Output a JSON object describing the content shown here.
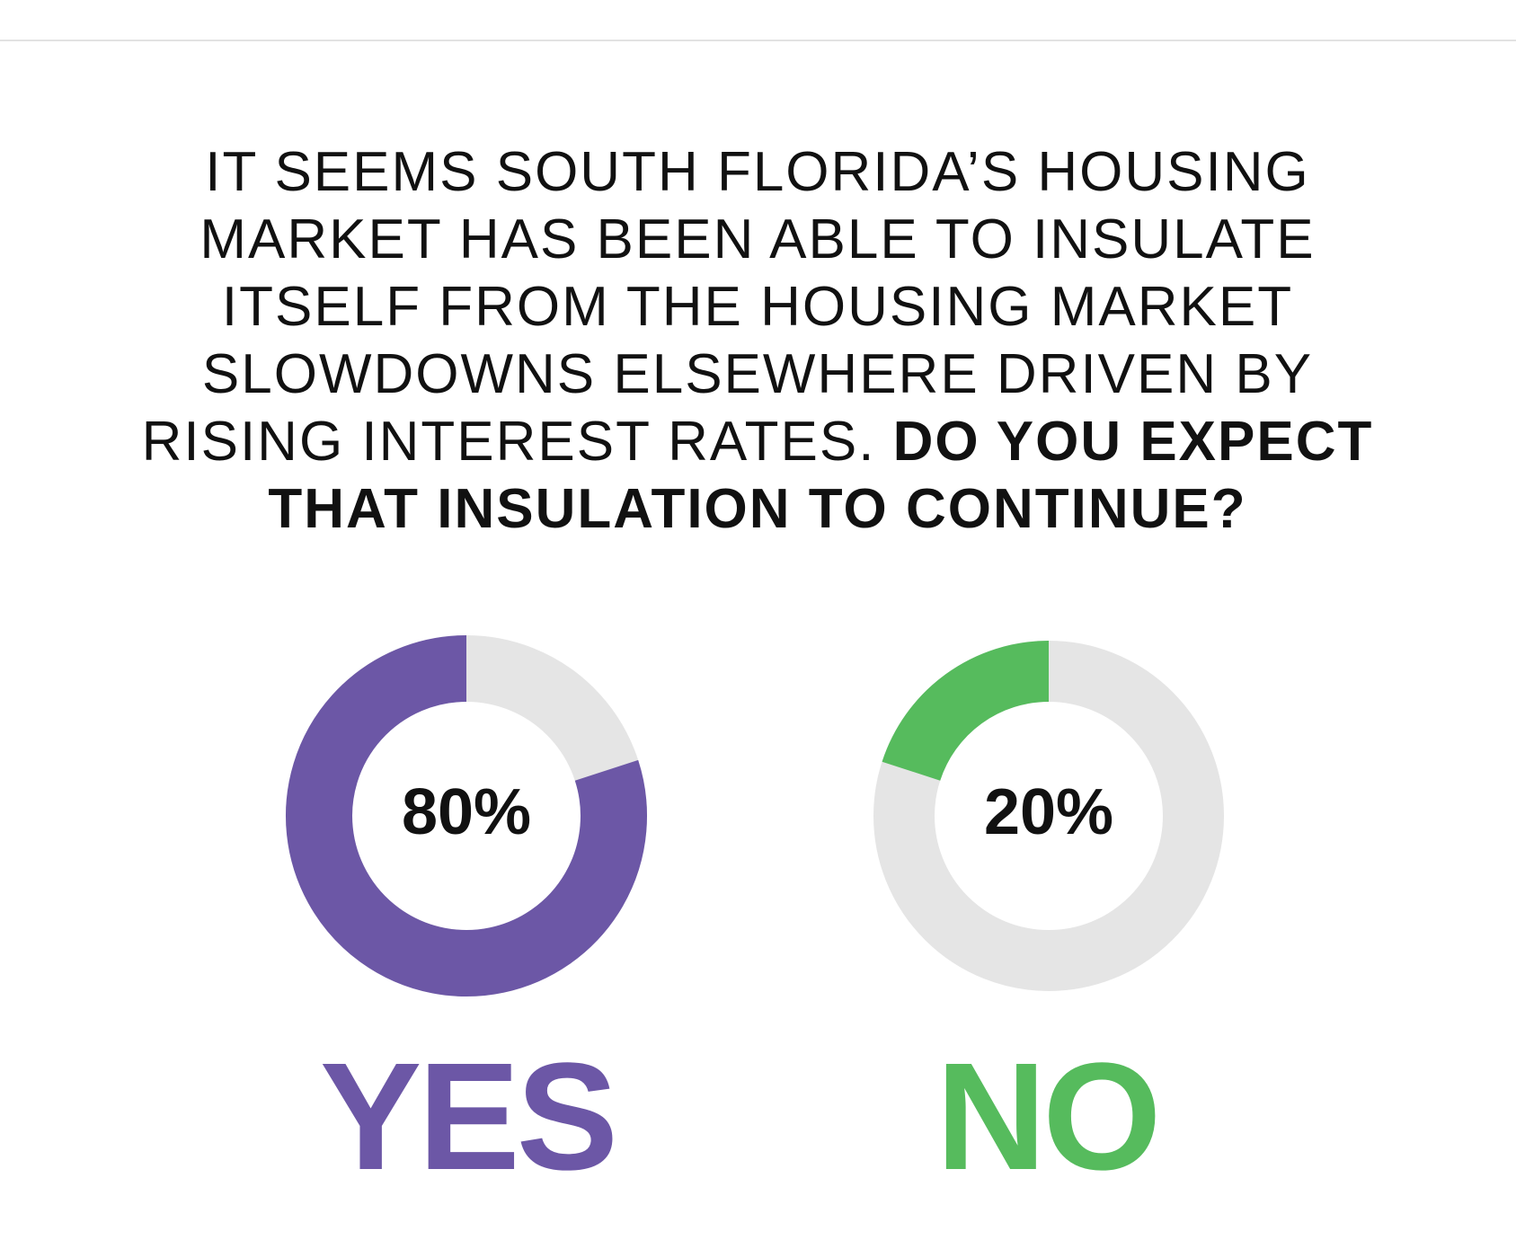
{
  "question": {
    "lines": [
      "IT SEEMS SOUTH FLORIDA’S HOUSING",
      "MARKET HAS BEEN ABLE TO INSULATE",
      "ITSELF FROM THE HOUSING MARKET",
      "SLOWDOWNS ELSEWHERE DRIVEN BY"
    ],
    "line5_light": "RISING INTEREST RATES. ",
    "line5_bold": "DO YOU EXPECT",
    "line6_bold": "THAT INSULATION TO CONTINUE?"
  },
  "chart_data": {
    "type": "pie",
    "variant": "donut",
    "track_color": "#e5e5e5",
    "series": [
      {
        "name": "YES",
        "value": 80,
        "label": "80%",
        "color": "#6c57a6"
      },
      {
        "name": "NO",
        "value": 20,
        "label": "20%",
        "color": "#56bb5d"
      }
    ]
  }
}
